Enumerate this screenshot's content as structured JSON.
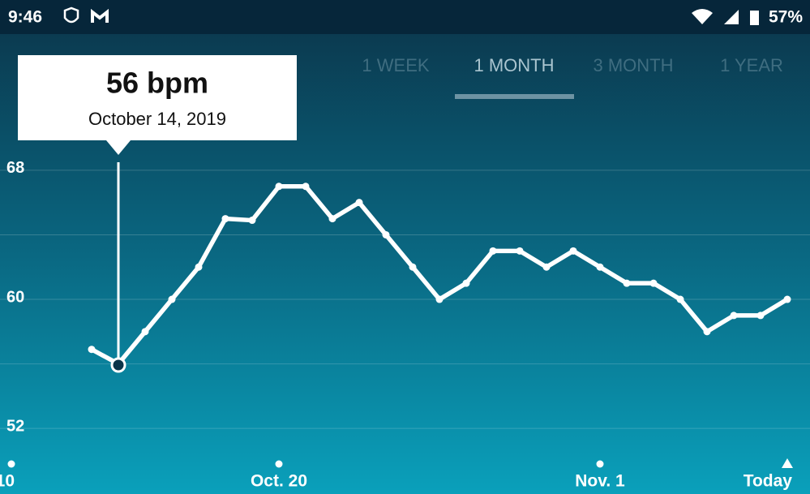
{
  "status_bar": {
    "time": "9:46",
    "battery": "57%"
  },
  "tabs": [
    "1 WEEK",
    "1 MONTH",
    "3 MONTH",
    "1 YEAR"
  ],
  "tooltip": {
    "value": "56 bpm",
    "date": "October 14, 2019"
  },
  "chart_data": {
    "type": "line",
    "categories": [
      "10",
      null,
      null,
      null,
      null,
      null,
      null,
      null,
      null,
      null,
      "Oct. 20",
      null,
      null,
      null,
      null,
      null,
      null,
      null,
      null,
      null,
      null,
      null,
      "Nov. 1",
      null,
      null,
      null,
      null,
      null,
      null,
      "Today"
    ],
    "series": [
      {
        "color": "#ffffff",
        "values": [
          null,
          null,
          null,
          56.9,
          56,
          58,
          60,
          62,
          65,
          64.9,
          67,
          67,
          65,
          66,
          64,
          62,
          60,
          61,
          63,
          63,
          62,
          63,
          62,
          61,
          61,
          60,
          58,
          59,
          59,
          60
        ]
      }
    ],
    "ylim": [
      50.4,
      69
    ],
    "yticks": [
      52,
      60,
      68
    ],
    "minor_yticks": [
      56,
      64
    ],
    "grid": true
  }
}
